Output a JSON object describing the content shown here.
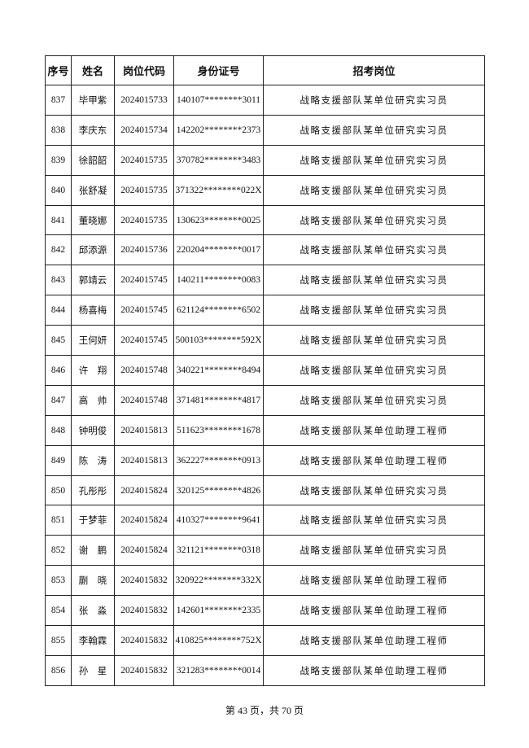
{
  "table": {
    "header": [
      "序号",
      "姓名",
      "岗位代码",
      "身份证号",
      "招考岗位"
    ],
    "rows": [
      [
        837,
        "毕甲紫",
        "2024015733",
        "140107********3011",
        "战略支援部队某单位研究实习员"
      ],
      [
        838,
        "李庆东",
        "2024015734",
        "142202********2373",
        "战略支援部队某单位研究实习员"
      ],
      [
        839,
        "徐韶韶",
        "2024015735",
        "370782********3483",
        "战略支援部队某单位研究实习员"
      ],
      [
        840,
        "张舒凝",
        "2024015735",
        "371322********022X",
        "战略支援部队某单位研究实习员"
      ],
      [
        841,
        "董晓娜",
        "2024015735",
        "130623********0025",
        "战略支援部队某单位研究实习员"
      ],
      [
        842,
        "邱添源",
        "2024015736",
        "220204********0017",
        "战略支援部队某单位研究实习员"
      ],
      [
        843,
        "郭靖云",
        "2024015745",
        "140211********0083",
        "战略支援部队某单位研究实习员"
      ],
      [
        844,
        "杨喜梅",
        "2024015745",
        "621124********6502",
        "战略支援部队某单位研究实习员"
      ],
      [
        845,
        "王何妍",
        "2024015745",
        "500103********592X",
        "战略支援部队某单位研究实习员"
      ],
      [
        846,
        "许　翔",
        "2024015748",
        "340221********8494",
        "战略支援部队某单位研究实习员"
      ],
      [
        847,
        "高　帅",
        "2024015748",
        "371481********4817",
        "战略支援部队某单位研究实习员"
      ],
      [
        848,
        "钟明俊",
        "2024015813",
        "511623********1678",
        "战略支援部队某单位助理工程师"
      ],
      [
        849,
        "陈　涛",
        "2024015813",
        "362227********0913",
        "战略支援部队某单位助理工程师"
      ],
      [
        850,
        "孔彤彤",
        "2024015824",
        "320125********4826",
        "战略支援部队某单位研究实习员"
      ],
      [
        851,
        "于梦菲",
        "2024015824",
        "410327********9641",
        "战略支援部队某单位研究实习员"
      ],
      [
        852,
        "谢　鹏",
        "2024015824",
        "321121********0318",
        "战略支援部队某单位研究实习员"
      ],
      [
        853,
        "蒯　晓",
        "2024015832",
        "320922********332X",
        "战略支援部队某单位助理工程师"
      ],
      [
        854,
        "张　淼",
        "2024015832",
        "142601********2335",
        "战略支援部队某单位助理工程师"
      ],
      [
        855,
        "李翰霖",
        "2024015832",
        "410825********752X",
        "战略支援部队某单位助理工程师"
      ],
      [
        856,
        "孙　星",
        "2024015832",
        "321283********0014",
        "战略支援部队某单位助理工程师"
      ]
    ]
  },
  "footer": "第 43 页，共 70 页"
}
